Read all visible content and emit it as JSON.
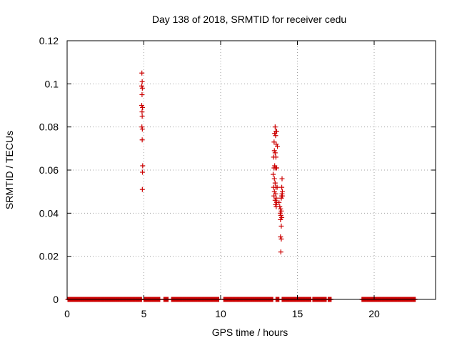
{
  "chart_data": {
    "type": "scatter",
    "title": "Day 138 of 2018, SRMTID for receiver cedu",
    "xlabel": "GPS time / hours",
    "ylabel": "SRMTID / TECUs",
    "xlim": [
      0,
      24
    ],
    "ylim": [
      0,
      0.12
    ],
    "xticks": [
      0,
      5,
      10,
      15,
      20
    ],
    "xtick_labels": [
      "0",
      "5",
      "10",
      "15",
      "20"
    ],
    "yticks": [
      0,
      0.02,
      0.04,
      0.06,
      0.08,
      0.1,
      0.12
    ],
    "ytick_labels": [
      "0",
      "0.02",
      "0.04",
      "0.06",
      "0.08",
      "0.1",
      "0.12"
    ],
    "grid": true,
    "marker": "+",
    "color": "#cc0000",
    "zero_segments": [
      [
        0.05,
        4.85
      ],
      [
        5.0,
        6.05
      ],
      [
        6.3,
        6.6
      ],
      [
        6.8,
        9.9
      ],
      [
        10.2,
        13.4
      ],
      [
        13.6,
        13.8
      ],
      [
        14.0,
        15.9
      ],
      [
        16.0,
        16.9
      ],
      [
        17.0,
        17.2
      ],
      [
        19.2,
        22.7
      ]
    ],
    "zero_step": 0.04,
    "points": [
      [
        4.87,
        0.105
      ],
      [
        4.89,
        0.101
      ],
      [
        4.86,
        0.099
      ],
      [
        4.9,
        0.098
      ],
      [
        4.88,
        0.095
      ],
      [
        4.86,
        0.09
      ],
      [
        4.91,
        0.089
      ],
      [
        4.88,
        0.087
      ],
      [
        4.89,
        0.085
      ],
      [
        4.87,
        0.08
      ],
      [
        4.9,
        0.079
      ],
      [
        4.89,
        0.074
      ],
      [
        4.92,
        0.062
      ],
      [
        4.91,
        0.059
      ],
      [
        4.9,
        0.051
      ],
      [
        13.55,
        0.08
      ],
      [
        13.6,
        0.078
      ],
      [
        13.52,
        0.077
      ],
      [
        13.65,
        0.078
      ],
      [
        13.58,
        0.076
      ],
      [
        13.48,
        0.073
      ],
      [
        13.62,
        0.072
      ],
      [
        13.7,
        0.071
      ],
      [
        13.5,
        0.069
      ],
      [
        13.55,
        0.068
      ],
      [
        13.6,
        0.066
      ],
      [
        13.45,
        0.066
      ],
      [
        13.52,
        0.062
      ],
      [
        13.58,
        0.061
      ],
      [
        13.48,
        0.061
      ],
      [
        13.65,
        0.061
      ],
      [
        13.42,
        0.058
      ],
      [
        13.5,
        0.056
      ],
      [
        13.55,
        0.054
      ],
      [
        13.45,
        0.052
      ],
      [
        13.6,
        0.052
      ],
      [
        13.68,
        0.052
      ],
      [
        13.5,
        0.05
      ],
      [
        13.58,
        0.049
      ],
      [
        13.47,
        0.048
      ],
      [
        13.62,
        0.047
      ],
      [
        13.55,
        0.046
      ],
      [
        13.65,
        0.045
      ],
      [
        13.58,
        0.044
      ],
      [
        13.62,
        0.043
      ],
      [
        13.8,
        0.045
      ],
      [
        13.85,
        0.043
      ],
      [
        13.9,
        0.042
      ],
      [
        13.95,
        0.041
      ],
      [
        13.88,
        0.04
      ],
      [
        13.92,
        0.039
      ],
      [
        13.98,
        0.038
      ],
      [
        13.9,
        0.037
      ],
      [
        13.95,
        0.034
      ],
      [
        13.9,
        0.029
      ],
      [
        13.95,
        0.028
      ],
      [
        13.92,
        0.022
      ],
      [
        14.0,
        0.056
      ],
      [
        13.98,
        0.052
      ],
      [
        14.02,
        0.05
      ],
      [
        14.0,
        0.049
      ],
      [
        13.97,
        0.048
      ],
      [
        14.02,
        0.048
      ],
      [
        13.95,
        0.047
      ]
    ]
  }
}
